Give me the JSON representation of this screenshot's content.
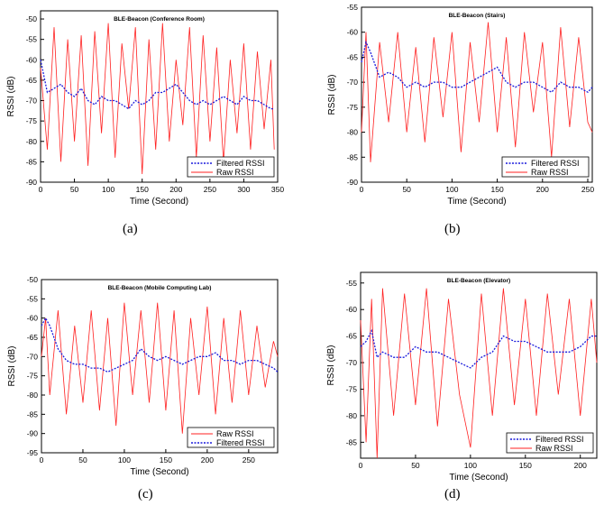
{
  "figure": {
    "panel_labels": [
      "(a)",
      "(b)",
      "(c)",
      "(d)"
    ]
  },
  "colors": {
    "raw": "#ff2020",
    "filtered": "#1a1adc",
    "axis": "#000000"
  },
  "chart_data": [
    {
      "type": "line",
      "title": "BLE-Beacon (Conference Room)",
      "xlabel": "Time (Second)",
      "ylabel": "RSSI (dB)",
      "xlim": [
        0,
        350
      ],
      "ylim": [
        -90,
        -48
      ],
      "xticks": [
        0,
        50,
        100,
        150,
        200,
        250,
        300,
        350
      ],
      "yticks": [
        -90,
        -85,
        -80,
        -75,
        -70,
        -65,
        -60,
        -55,
        -50
      ],
      "legend_position": "bottom-right",
      "legend": [
        "Filtered RSSI",
        "Raw RSSI"
      ],
      "series": [
        {
          "name": "Raw RSSI",
          "x": [
            0,
            10,
            20,
            30,
            40,
            50,
            60,
            70,
            80,
            90,
            100,
            110,
            120,
            130,
            140,
            150,
            160,
            170,
            180,
            190,
            200,
            210,
            220,
            230,
            240,
            250,
            260,
            270,
            280,
            290,
            300,
            310,
            320,
            330,
            340,
            345
          ],
          "values": [
            -62,
            -82,
            -52,
            -85,
            -55,
            -80,
            -54,
            -86,
            -53,
            -78,
            -51,
            -84,
            -56,
            -72,
            -52,
            -88,
            -55,
            -82,
            -51,
            -80,
            -60,
            -76,
            -52,
            -84,
            -54,
            -80,
            -57,
            -85,
            -60,
            -78,
            -56,
            -82,
            -58,
            -77,
            -60,
            -82
          ]
        },
        {
          "name": "Filtered RSSI",
          "x": [
            0,
            10,
            20,
            30,
            40,
            50,
            60,
            70,
            80,
            90,
            100,
            110,
            120,
            130,
            140,
            150,
            160,
            170,
            180,
            190,
            200,
            210,
            220,
            230,
            240,
            250,
            260,
            270,
            280,
            290,
            300,
            310,
            320,
            330,
            340,
            345
          ],
          "values": [
            -60,
            -68,
            -67,
            -66,
            -68,
            -69,
            -67,
            -70,
            -71,
            -69,
            -70,
            -70,
            -71,
            -72,
            -70,
            -71,
            -70,
            -68,
            -68,
            -67,
            -66,
            -68,
            -70,
            -71,
            -70,
            -71,
            -70,
            -69,
            -70,
            -71,
            -69,
            -70,
            -70,
            -71,
            -72,
            -72
          ]
        }
      ]
    },
    {
      "type": "line",
      "title": "BLE-Beacon (Stairs)",
      "xlabel": "Time (Second)",
      "ylabel": "RSSI (dB)",
      "xlim": [
        0,
        255
      ],
      "ylim": [
        -90,
        -55
      ],
      "xticks": [
        0,
        50,
        100,
        150,
        200,
        250
      ],
      "yticks": [
        -90,
        -85,
        -80,
        -75,
        -70,
        -65,
        -60,
        -55
      ],
      "legend_position": "bottom-right",
      "legend": [
        "Filtered RSSI",
        "Raw RSSI"
      ],
      "series": [
        {
          "name": "Raw RSSI",
          "x": [
            0,
            5,
            10,
            20,
            30,
            40,
            50,
            60,
            70,
            80,
            90,
            100,
            110,
            120,
            130,
            140,
            150,
            160,
            170,
            180,
            190,
            200,
            210,
            220,
            230,
            240,
            250,
            255
          ],
          "values": [
            -80,
            -60,
            -86,
            -62,
            -78,
            -60,
            -80,
            -63,
            -82,
            -61,
            -77,
            -60,
            -84,
            -62,
            -78,
            -58,
            -80,
            -61,
            -83,
            -60,
            -76,
            -62,
            -85,
            -59,
            -79,
            -61,
            -78,
            -80
          ]
        },
        {
          "name": "Filtered RSSI",
          "x": [
            0,
            5,
            10,
            20,
            30,
            40,
            50,
            60,
            70,
            80,
            90,
            100,
            110,
            120,
            130,
            140,
            150,
            160,
            170,
            180,
            190,
            200,
            210,
            220,
            230,
            240,
            250,
            255
          ],
          "values": [
            -66,
            -62,
            -64,
            -69,
            -68,
            -69,
            -71,
            -70,
            -71,
            -70,
            -70,
            -71,
            -71,
            -70,
            -69,
            -68,
            -67,
            -70,
            -71,
            -70,
            -70,
            -71,
            -72,
            -70,
            -71,
            -71,
            -72,
            -71
          ]
        }
      ]
    },
    {
      "type": "line",
      "title": "BLE-Beacon (Mobile Computing Lab)",
      "xlabel": "Time (Second)",
      "ylabel": "RSSI (dB)",
      "xlim": [
        0,
        285
      ],
      "ylim": [
        -95,
        -50
      ],
      "xticks": [
        0,
        50,
        100,
        150,
        200,
        250
      ],
      "yticks": [
        -95,
        -90,
        -85,
        -80,
        -75,
        -70,
        -65,
        -60,
        -55,
        -50
      ],
      "legend_position": "bottom-right",
      "legend": [
        "Raw RSSI",
        "Filtered RSSI"
      ],
      "series": [
        {
          "name": "Raw RSSI",
          "x": [
            0,
            5,
            10,
            20,
            30,
            40,
            50,
            60,
            70,
            80,
            90,
            100,
            110,
            120,
            130,
            140,
            150,
            160,
            170,
            180,
            190,
            200,
            210,
            220,
            230,
            240,
            250,
            260,
            270,
            280,
            285
          ],
          "values": [
            -70,
            -60,
            -80,
            -58,
            -85,
            -62,
            -82,
            -58,
            -84,
            -60,
            -88,
            -56,
            -80,
            -58,
            -82,
            -56,
            -84,
            -58,
            -90,
            -60,
            -80,
            -57,
            -85,
            -60,
            -82,
            -58,
            -80,
            -62,
            -78,
            -66,
            -70
          ]
        },
        {
          "name": "Filtered RSSI",
          "x": [
            0,
            5,
            10,
            20,
            30,
            40,
            50,
            60,
            70,
            80,
            90,
            100,
            110,
            120,
            130,
            140,
            150,
            160,
            170,
            180,
            190,
            200,
            210,
            220,
            230,
            240,
            250,
            260,
            270,
            280,
            285
          ],
          "values": [
            -62,
            -60,
            -62,
            -68,
            -71,
            -72,
            -72,
            -73,
            -73,
            -74,
            -73,
            -72,
            -71,
            -68,
            -70,
            -71,
            -70,
            -71,
            -72,
            -71,
            -70,
            -70,
            -69,
            -71,
            -71,
            -72,
            -71,
            -71,
            -72,
            -73,
            -74
          ]
        }
      ]
    },
    {
      "type": "line",
      "title": "BLE-Beacon (Elevator)",
      "xlabel": "Time (Second)",
      "ylabel": "RSSI (dB)",
      "xlim": [
        0,
        215
      ],
      "ylim": [
        -88,
        -53
      ],
      "xticks": [
        0,
        50,
        100,
        150,
        200
      ],
      "yticks": [
        -85,
        -80,
        -75,
        -70,
        -65,
        -60,
        -55
      ],
      "legend_position": "bottom-right",
      "legend": [
        "Filtered RSSI",
        "Raw RSSI"
      ],
      "series": [
        {
          "name": "Raw RSSI",
          "x": [
            0,
            5,
            10,
            15,
            20,
            30,
            40,
            50,
            60,
            70,
            80,
            90,
            100,
            110,
            120,
            130,
            140,
            150,
            160,
            170,
            180,
            190,
            200,
            210,
            215
          ],
          "values": [
            -62,
            -85,
            -58,
            -88,
            -56,
            -80,
            -57,
            -78,
            -56,
            -82,
            -58,
            -76,
            -86,
            -57,
            -80,
            -56,
            -78,
            -58,
            -80,
            -57,
            -76,
            -58,
            -80,
            -58,
            -70
          ]
        },
        {
          "name": "Filtered RSSI",
          "x": [
            0,
            5,
            10,
            15,
            20,
            30,
            40,
            50,
            60,
            70,
            80,
            90,
            100,
            110,
            120,
            130,
            140,
            150,
            160,
            170,
            180,
            190,
            200,
            210,
            215
          ],
          "values": [
            -67,
            -66,
            -64,
            -69,
            -68,
            -69,
            -69,
            -67,
            -68,
            -68,
            -69,
            -70,
            -71,
            -69,
            -68,
            -65,
            -66,
            -66,
            -67,
            -68,
            -68,
            -68,
            -67,
            -65,
            -65
          ]
        }
      ]
    }
  ]
}
